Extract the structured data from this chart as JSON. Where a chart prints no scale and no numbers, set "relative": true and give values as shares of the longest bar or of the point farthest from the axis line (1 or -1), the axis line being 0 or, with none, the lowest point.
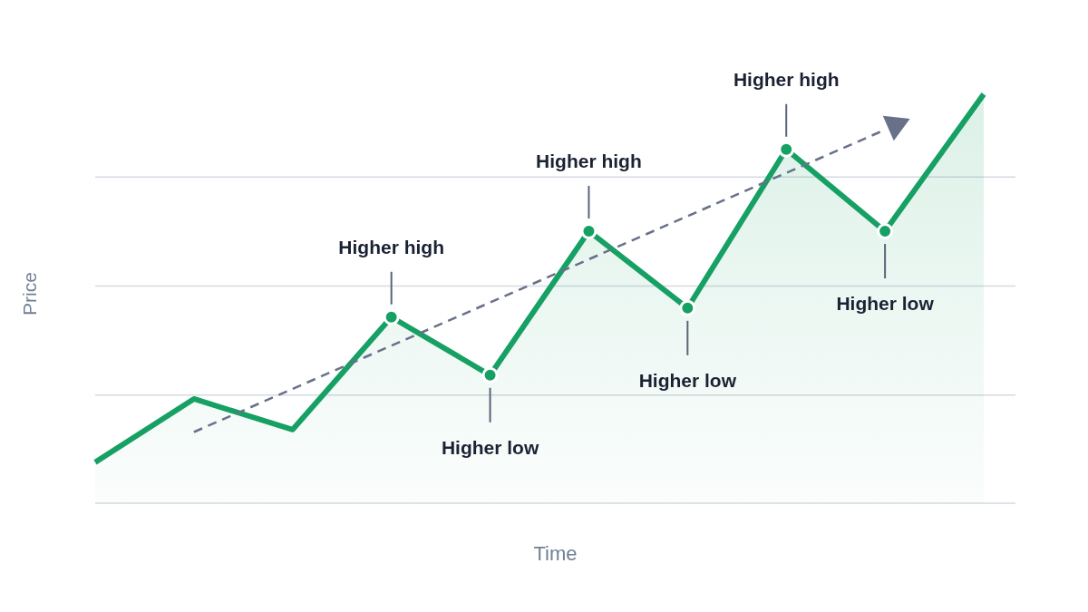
{
  "chart_data": {
    "type": "area",
    "relative": true,
    "xlabel": "Time",
    "ylabel": "Price",
    "categories": [
      null,
      null,
      null,
      null,
      null,
      null,
      null,
      null,
      null,
      null
    ],
    "series": [
      {
        "color": "#16a064",
        "values": [
          0.1,
          0.255,
          0.18,
          0.455,
          0.313,
          0.665,
          0.477,
          0.865,
          0.665,
          1.0
        ]
      },
      {
        "type": "line",
        "line_style": "dashed",
        "marker": "triangle",
        "color": "#687189",
        "values": [
          null,
          0.174,
          null,
          null,
          null,
          null,
          null,
          null,
          0.913,
          null
        ]
      }
    ],
    "annotations": [
      "Higher high",
      "Higher low",
      "Higher high",
      "Higher low",
      "Higher high",
      "Higher low"
    ],
    "grid": "y",
    "marker": "circle",
    "line_style": "solid"
  }
}
